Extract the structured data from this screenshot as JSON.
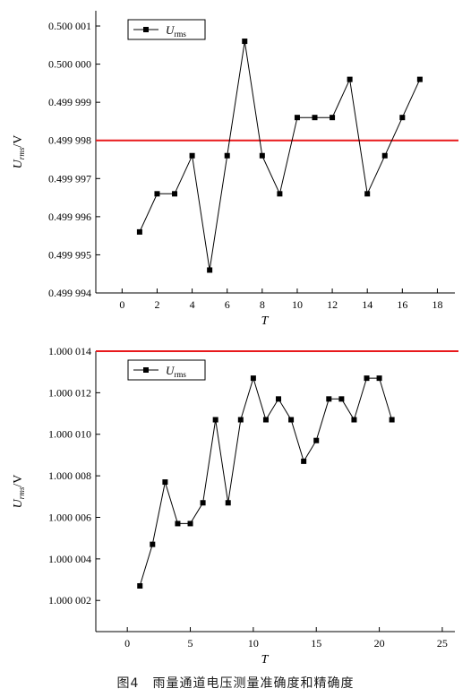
{
  "chart_data": [
    {
      "type": "line",
      "x": [
        1,
        2,
        3,
        4,
        5,
        6,
        7,
        8,
        9,
        10,
        11,
        12,
        13,
        14,
        15,
        16,
        17
      ],
      "series": [
        {
          "name": "Urms",
          "values": [
            0.4999956,
            0.4999966,
            0.4999966,
            0.4999976,
            0.4999946,
            0.4999976,
            0.5000006,
            0.4999976,
            0.4999966,
            0.4999986,
            0.4999986,
            0.4999986,
            0.4999996,
            0.4999966,
            0.4999976,
            0.4999986,
            0.4999996
          ]
        }
      ],
      "reference_line": 0.499998,
      "xlim": [
        -1.5,
        19
      ],
      "ylim": [
        0.499994,
        0.5000014
      ],
      "xticks": [
        0,
        2,
        4,
        6,
        8,
        10,
        12,
        14,
        16,
        18
      ],
      "yticks": [
        0.499994,
        0.499995,
        0.499996,
        0.499997,
        0.499998,
        0.499999,
        0.5,
        0.500001
      ],
      "ytick_labels": [
        "0.499 994",
        "0.499 995",
        "0.499 996",
        "0.499 997",
        "0.499 998",
        "0.499 999",
        "0.500 000",
        "0.500 001"
      ],
      "xlabel": "T",
      "ylabel_main": "U",
      "ylabel_sub": "rms",
      "ylabel_unit": "/V",
      "legend_main": "U",
      "legend_sub": "rms",
      "legend_position": "top-left",
      "colors": {
        "series": "#000000",
        "reference": "#e8191c"
      }
    },
    {
      "type": "line",
      "x": [
        1,
        2,
        3,
        4,
        5,
        6,
        7,
        8,
        9,
        10,
        11,
        12,
        13,
        14,
        15,
        16,
        17,
        18,
        19,
        20,
        21
      ],
      "series": [
        {
          "name": "Urms",
          "values": [
            1.0000027,
            1.0000047,
            1.0000077,
            1.0000057,
            1.0000057,
            1.0000067,
            1.0000107,
            1.0000067,
            1.0000107,
            1.0000127,
            1.0000107,
            1.0000117,
            1.0000107,
            1.0000087,
            1.0000097,
            1.0000117,
            1.0000117,
            1.0000107,
            1.0000127,
            1.0000127,
            1.0000107
          ]
        }
      ],
      "reference_line": 1.000014,
      "xlim": [
        -2.5,
        26
      ],
      "ylim": [
        1.0000005,
        1.000014
      ],
      "xticks": [
        0,
        5,
        10,
        15,
        20,
        25
      ],
      "yticks": [
        1.000002,
        1.000004,
        1.000006,
        1.000008,
        1.00001,
        1.000012,
        1.000014
      ],
      "ytick_labels": [
        "1.000 002",
        "1.000 004",
        "1.000 006",
        "1.000 008",
        "1.000 010",
        "1.000 012",
        "1.000 014"
      ],
      "xlabel": "T",
      "ylabel_main": "U",
      "ylabel_sub": "rms",
      "ylabel_unit": "/V",
      "legend_main": "U",
      "legend_sub": "rms",
      "legend_position": "top-left",
      "colors": {
        "series": "#000000",
        "reference": "#e8191c"
      }
    }
  ],
  "caption": "图4　雨量通道电压测量准确度和精确度"
}
